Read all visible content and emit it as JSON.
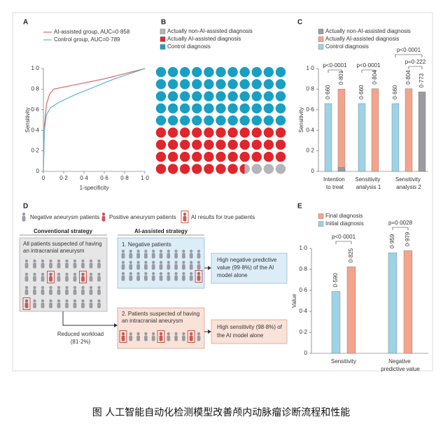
{
  "chart_data": [
    {
      "type": "line",
      "panel": "A",
      "xlabel": "1-specificity",
      "ylabel": "Sensitivity",
      "xlim": [
        0,
        1
      ],
      "ylim": [
        0,
        1
      ],
      "xticks": [
        0,
        {
          "value": 0.2,
          "label": "0·2"
        },
        {
          "value": 0.4,
          "label": "0·4"
        },
        {
          "value": 0.6,
          "label": "0·6"
        },
        {
          "value": 0.8,
          "label": "0·8"
        },
        {
          "value": 1,
          "label": "1·0"
        }
      ],
      "yticks": [
        0,
        {
          "value": 0.2,
          "label": "0·2"
        },
        {
          "value": 0.4,
          "label": "0·4"
        },
        {
          "value": 0.6,
          "label": "0·6"
        },
        {
          "value": 0.8,
          "label": "0·8"
        },
        {
          "value": 1,
          "label": "1·0"
        }
      ],
      "series": [
        {
          "name": "AI-assisted group, AUC=0·858",
          "color": "#d9646a",
          "x": [
            0,
            0.01,
            0.03,
            0.06,
            0.1,
            0.2,
            0.4,
            0.6,
            0.8,
            1
          ],
          "values": [
            0,
            0.45,
            0.65,
            0.75,
            0.8,
            0.82,
            0.86,
            0.9,
            0.95,
            1
          ]
        },
        {
          "name": "Control group, AUC=0·789",
          "color": "#5bb8c8",
          "x": [
            0,
            0.01,
            0.03,
            0.07,
            0.15,
            0.3,
            0.5,
            0.7,
            1
          ],
          "values": [
            0,
            0.4,
            0.55,
            0.62,
            0.67,
            0.74,
            0.82,
            0.9,
            1
          ]
        }
      ]
    },
    {
      "type": "waffle",
      "panel": "B",
      "series": [
        {
          "name": "Actually non-AI-assisted diagnosis",
          "color": "#b5b5b8",
          "value": 3.5
        },
        {
          "name": "Actually AI-assisted diagnosis",
          "color": "#e0262c",
          "value": 40.5
        },
        {
          "name": "Control diagnosis",
          "color": "#1a9fc4",
          "value": 55
        }
      ]
    },
    {
      "type": "bar",
      "panel": "C",
      "ylabel": "Sensitivity",
      "ylim": [
        0,
        1
      ],
      "yticks": [
        0,
        {
          "value": 0.2,
          "label": "0·2"
        },
        {
          "value": 0.4,
          "label": "0·4"
        },
        {
          "value": 0.6,
          "label": "0·6"
        },
        {
          "value": 0.8,
          "label": "0·8"
        },
        {
          "value": 1,
          "label": "1·0"
        }
      ],
      "categories": [
        "Intention to treat",
        "Sensitivity analysis 1",
        "Sensitivity analysis 2"
      ],
      "series": [
        {
          "name": "Actually non-AI-assisted diagnosis",
          "color": "#9b9ba0",
          "values": [
            0.04,
            null,
            0.773
          ],
          "value_labels": [
            null,
            null,
            "0·773"
          ]
        },
        {
          "name": "Actually AI-assisted diagnosis",
          "color": "#f4a48a",
          "values": [
            0.801,
            0.804,
            0.804
          ],
          "value_labels": [
            "0·801",
            "0·804",
            "0·804"
          ]
        },
        {
          "name": "Control diagnosis",
          "color": "#9dd3e6",
          "values": [
            0.66,
            0.66,
            0.66
          ],
          "value_labels": [
            "0·660",
            "0·660",
            "0·660"
          ]
        }
      ],
      "annotations": [
        "p<0·0001",
        "p<0·0001",
        "p<0·0001",
        "p=0·222"
      ]
    },
    {
      "type": "bar",
      "panel": "E",
      "ylabel": "Value",
      "ylim": [
        0,
        1
      ],
      "yticks": [
        0,
        {
          "value": 0.2,
          "label": "0·2"
        },
        {
          "value": 0.4,
          "label": "0·4"
        },
        {
          "value": 0.6,
          "label": "0·6"
        },
        {
          "value": 0.8,
          "label": "0·8"
        },
        {
          "value": 1,
          "label": "1·0"
        }
      ],
      "categories": [
        "Sensitivity",
        "Negative predictive value"
      ],
      "series": [
        {
          "name": "Final diagnosis",
          "color": "#f4a48a",
          "values": [
            0.825,
            0.979
          ],
          "value_labels": [
            "0·825",
            "0·979"
          ]
        },
        {
          "name": "Initial diagnosis",
          "color": "#9dd3e6",
          "values": [
            0.59,
            0.959
          ],
          "value_labels": [
            "0·590",
            "0·959"
          ]
        }
      ],
      "annotations": [
        "p<0·0001",
        "p=0·0028"
      ]
    }
  ],
  "diagram": {
    "panel": "D",
    "legend": [
      "Negative aneurysm patients",
      "Positive aneurysm patients",
      "AI results for true patients"
    ],
    "conventional": {
      "title": "Conventional strategy",
      "box": [
        "All patients suspected of having",
        "an intracranial aneurysm"
      ]
    },
    "ai": {
      "title": "AI-assisted strategy",
      "box1": [
        "1. Negative patients"
      ],
      "result1": [
        "High negative predictive",
        "value (99·8%) of the AI",
        "model alone"
      ],
      "box2": [
        "2. Patients suspected of having",
        "an intracranial aneurysm"
      ],
      "result2": [
        "High sensitivity (98·8%) of",
        "the AI model alone"
      ]
    },
    "workload": [
      "Reduced workload",
      "(81·2%)"
    ]
  },
  "caption": "图 人工智能自动化检测模型改善颅内动脉瘤诊断流程和性能"
}
